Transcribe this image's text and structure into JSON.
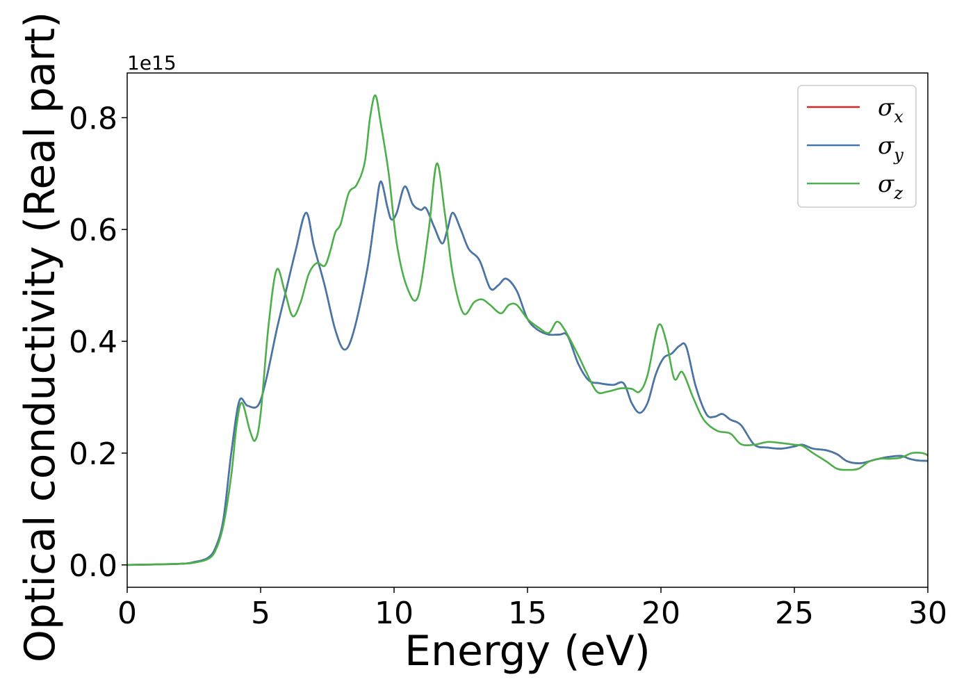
{
  "chart_data": {
    "type": "line",
    "xlabel": "Energy (eV)",
    "ylabel": "Optical conductivity (Real part)",
    "y_offset_label": "1e15",
    "xlim": [
      0,
      30
    ],
    "ylim": [
      -0.04,
      0.88
    ],
    "x_ticks": [
      0,
      5,
      10,
      15,
      20,
      25,
      30
    ],
    "y_ticks": [
      0.0,
      0.2,
      0.4,
      0.6,
      0.8
    ],
    "x_tick_labels": [
      "0",
      "5",
      "10",
      "15",
      "20",
      "25",
      "30"
    ],
    "y_tick_labels": [
      "0.0",
      "0.2",
      "0.4",
      "0.6",
      "0.8"
    ],
    "grid": false,
    "legend_position": "top-right",
    "series": [
      {
        "name": "σx",
        "legend_symbol": "σ",
        "legend_sub": "x",
        "color": "#d62728",
        "points": [
          [
            0,
            0.0
          ],
          [
            2,
            0.002
          ],
          [
            2.5,
            0.005
          ],
          [
            3,
            0.012
          ],
          [
            3.3,
            0.03
          ],
          [
            3.6,
            0.08
          ],
          [
            3.9,
            0.2
          ],
          [
            4.2,
            0.293
          ],
          [
            4.5,
            0.285
          ],
          [
            4.9,
            0.285
          ],
          [
            5.2,
            0.33
          ],
          [
            5.6,
            0.42
          ],
          [
            5.9,
            0.48
          ],
          [
            6.3,
            0.56
          ],
          [
            6.7,
            0.63
          ],
          [
            7.0,
            0.57
          ],
          [
            7.4,
            0.5
          ],
          [
            7.8,
            0.42
          ],
          [
            8.15,
            0.385
          ],
          [
            8.5,
            0.42
          ],
          [
            9.0,
            0.53
          ],
          [
            9.3,
            0.63
          ],
          [
            9.5,
            0.686
          ],
          [
            9.75,
            0.64
          ],
          [
            9.9,
            0.618
          ],
          [
            10.1,
            0.63
          ],
          [
            10.4,
            0.677
          ],
          [
            10.7,
            0.645
          ],
          [
            11.0,
            0.635
          ],
          [
            11.2,
            0.638
          ],
          [
            11.5,
            0.605
          ],
          [
            11.8,
            0.575
          ],
          [
            12.0,
            0.6
          ],
          [
            12.2,
            0.63
          ],
          [
            12.5,
            0.6
          ],
          [
            12.8,
            0.565
          ],
          [
            13.2,
            0.545
          ],
          [
            13.6,
            0.495
          ],
          [
            13.9,
            0.5
          ],
          [
            14.2,
            0.512
          ],
          [
            14.6,
            0.49
          ],
          [
            15.0,
            0.44
          ],
          [
            15.4,
            0.42
          ],
          [
            15.8,
            0.412
          ],
          [
            16.2,
            0.412
          ],
          [
            16.5,
            0.41
          ],
          [
            16.9,
            0.36
          ],
          [
            17.3,
            0.33
          ],
          [
            17.7,
            0.325
          ],
          [
            18.2,
            0.322
          ],
          [
            18.6,
            0.325
          ],
          [
            18.9,
            0.29
          ],
          [
            19.2,
            0.272
          ],
          [
            19.5,
            0.29
          ],
          [
            19.8,
            0.34
          ],
          [
            20.1,
            0.37
          ],
          [
            20.4,
            0.378
          ],
          [
            20.7,
            0.392
          ],
          [
            20.95,
            0.39
          ],
          [
            21.3,
            0.32
          ],
          [
            21.7,
            0.27
          ],
          [
            22.0,
            0.265
          ],
          [
            22.3,
            0.27
          ],
          [
            22.6,
            0.26
          ],
          [
            23.0,
            0.25
          ],
          [
            23.5,
            0.215
          ],
          [
            24.0,
            0.21
          ],
          [
            24.5,
            0.208
          ],
          [
            25.0,
            0.212
          ],
          [
            25.3,
            0.215
          ],
          [
            25.7,
            0.208
          ],
          [
            26.2,
            0.205
          ],
          [
            26.6,
            0.198
          ],
          [
            27.0,
            0.185
          ],
          [
            27.5,
            0.182
          ],
          [
            28.0,
            0.188
          ],
          [
            28.5,
            0.193
          ],
          [
            29.0,
            0.195
          ],
          [
            29.3,
            0.19
          ],
          [
            29.6,
            0.187
          ],
          [
            30.0,
            0.186
          ]
        ]
      },
      {
        "name": "σy",
        "legend_symbol": "σ",
        "legend_sub": "y",
        "color": "#4477aa",
        "points": [
          [
            0,
            0.0
          ],
          [
            2,
            0.002
          ],
          [
            2.5,
            0.005
          ],
          [
            3,
            0.012
          ],
          [
            3.3,
            0.03
          ],
          [
            3.6,
            0.08
          ],
          [
            3.9,
            0.2
          ],
          [
            4.2,
            0.293
          ],
          [
            4.5,
            0.285
          ],
          [
            4.9,
            0.285
          ],
          [
            5.2,
            0.33
          ],
          [
            5.6,
            0.42
          ],
          [
            5.9,
            0.48
          ],
          [
            6.3,
            0.56
          ],
          [
            6.7,
            0.63
          ],
          [
            7.0,
            0.57
          ],
          [
            7.4,
            0.5
          ],
          [
            7.8,
            0.42
          ],
          [
            8.15,
            0.385
          ],
          [
            8.5,
            0.42
          ],
          [
            9.0,
            0.53
          ],
          [
            9.3,
            0.63
          ],
          [
            9.5,
            0.686
          ],
          [
            9.75,
            0.64
          ],
          [
            9.9,
            0.618
          ],
          [
            10.1,
            0.63
          ],
          [
            10.4,
            0.677
          ],
          [
            10.7,
            0.645
          ],
          [
            11.0,
            0.635
          ],
          [
            11.2,
            0.638
          ],
          [
            11.5,
            0.605
          ],
          [
            11.8,
            0.575
          ],
          [
            12.0,
            0.6
          ],
          [
            12.2,
            0.63
          ],
          [
            12.5,
            0.6
          ],
          [
            12.8,
            0.565
          ],
          [
            13.2,
            0.545
          ],
          [
            13.6,
            0.495
          ],
          [
            13.9,
            0.5
          ],
          [
            14.2,
            0.512
          ],
          [
            14.6,
            0.49
          ],
          [
            15.0,
            0.44
          ],
          [
            15.4,
            0.42
          ],
          [
            15.8,
            0.412
          ],
          [
            16.2,
            0.412
          ],
          [
            16.5,
            0.41
          ],
          [
            16.9,
            0.36
          ],
          [
            17.3,
            0.33
          ],
          [
            17.7,
            0.325
          ],
          [
            18.2,
            0.322
          ],
          [
            18.6,
            0.325
          ],
          [
            18.9,
            0.29
          ],
          [
            19.2,
            0.272
          ],
          [
            19.5,
            0.29
          ],
          [
            19.8,
            0.34
          ],
          [
            20.1,
            0.37
          ],
          [
            20.4,
            0.378
          ],
          [
            20.7,
            0.392
          ],
          [
            20.95,
            0.39
          ],
          [
            21.3,
            0.32
          ],
          [
            21.7,
            0.27
          ],
          [
            22.0,
            0.265
          ],
          [
            22.3,
            0.27
          ],
          [
            22.6,
            0.26
          ],
          [
            23.0,
            0.25
          ],
          [
            23.5,
            0.215
          ],
          [
            24.0,
            0.21
          ],
          [
            24.5,
            0.208
          ],
          [
            25.0,
            0.212
          ],
          [
            25.3,
            0.215
          ],
          [
            25.7,
            0.208
          ],
          [
            26.2,
            0.205
          ],
          [
            26.6,
            0.198
          ],
          [
            27.0,
            0.185
          ],
          [
            27.5,
            0.182
          ],
          [
            28.0,
            0.188
          ],
          [
            28.5,
            0.193
          ],
          [
            29.0,
            0.195
          ],
          [
            29.3,
            0.19
          ],
          [
            29.6,
            0.187
          ],
          [
            30.0,
            0.186
          ]
        ]
      },
      {
        "name": "σz",
        "legend_symbol": "σ",
        "legend_sub": "z",
        "color": "#4daf4a",
        "points": [
          [
            0,
            0.0
          ],
          [
            2,
            0.002
          ],
          [
            2.5,
            0.004
          ],
          [
            3,
            0.01
          ],
          [
            3.3,
            0.025
          ],
          [
            3.6,
            0.07
          ],
          [
            3.9,
            0.16
          ],
          [
            4.1,
            0.25
          ],
          [
            4.3,
            0.29
          ],
          [
            4.6,
            0.24
          ],
          [
            4.8,
            0.223
          ],
          [
            5.0,
            0.27
          ],
          [
            5.3,
            0.43
          ],
          [
            5.6,
            0.528
          ],
          [
            5.9,
            0.49
          ],
          [
            6.2,
            0.445
          ],
          [
            6.5,
            0.47
          ],
          [
            6.8,
            0.52
          ],
          [
            7.1,
            0.54
          ],
          [
            7.4,
            0.535
          ],
          [
            7.6,
            0.56
          ],
          [
            7.8,
            0.595
          ],
          [
            8.0,
            0.61
          ],
          [
            8.3,
            0.665
          ],
          [
            8.6,
            0.68
          ],
          [
            8.9,
            0.72
          ],
          [
            9.1,
            0.8
          ],
          [
            9.3,
            0.84
          ],
          [
            9.5,
            0.79
          ],
          [
            9.8,
            0.7
          ],
          [
            10.1,
            0.575
          ],
          [
            10.5,
            0.495
          ],
          [
            10.9,
            0.48
          ],
          [
            11.3,
            0.6
          ],
          [
            11.6,
            0.718
          ],
          [
            11.9,
            0.63
          ],
          [
            12.2,
            0.52
          ],
          [
            12.6,
            0.45
          ],
          [
            13.0,
            0.47
          ],
          [
            13.3,
            0.475
          ],
          [
            13.6,
            0.465
          ],
          [
            14.0,
            0.45
          ],
          [
            14.3,
            0.465
          ],
          [
            14.6,
            0.465
          ],
          [
            15.0,
            0.44
          ],
          [
            15.4,
            0.425
          ],
          [
            15.8,
            0.415
          ],
          [
            16.1,
            0.435
          ],
          [
            16.4,
            0.42
          ],
          [
            16.9,
            0.375
          ],
          [
            17.2,
            0.345
          ],
          [
            17.6,
            0.31
          ],
          [
            18.0,
            0.31
          ],
          [
            18.5,
            0.316
          ],
          [
            18.9,
            0.315
          ],
          [
            19.2,
            0.31
          ],
          [
            19.5,
            0.34
          ],
          [
            19.9,
            0.428
          ],
          [
            20.2,
            0.4
          ],
          [
            20.5,
            0.333
          ],
          [
            20.8,
            0.345
          ],
          [
            21.2,
            0.3
          ],
          [
            21.6,
            0.26
          ],
          [
            22.1,
            0.24
          ],
          [
            22.6,
            0.235
          ],
          [
            23.0,
            0.216
          ],
          [
            23.5,
            0.215
          ],
          [
            24.0,
            0.22
          ],
          [
            24.5,
            0.218
          ],
          [
            25.0,
            0.215
          ],
          [
            25.3,
            0.213
          ],
          [
            25.7,
            0.2
          ],
          [
            26.2,
            0.185
          ],
          [
            26.6,
            0.172
          ],
          [
            27.0,
            0.17
          ],
          [
            27.4,
            0.172
          ],
          [
            27.8,
            0.185
          ],
          [
            28.2,
            0.19
          ],
          [
            28.6,
            0.19
          ],
          [
            29.0,
            0.192
          ],
          [
            29.4,
            0.2
          ],
          [
            29.8,
            0.2
          ],
          [
            30.0,
            0.196
          ]
        ]
      }
    ]
  }
}
